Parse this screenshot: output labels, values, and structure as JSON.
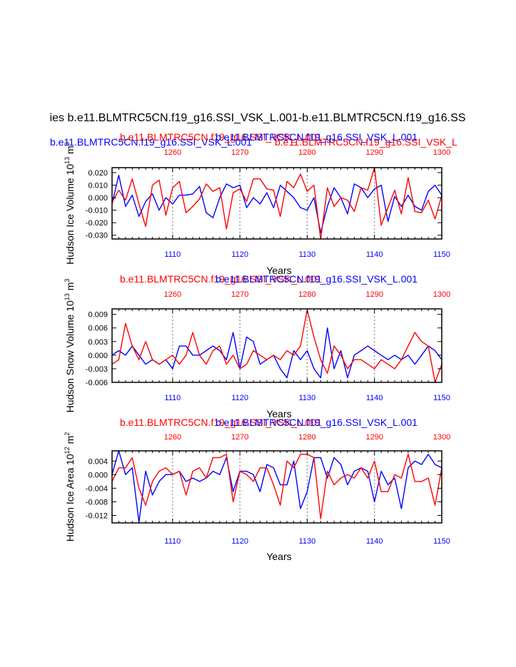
{
  "figure": {
    "main_title": "ies b.e11.BLMTRC5CN.f19_g16.SSI_VSK_L.001-b.e11.BLMTRC5CN.f19_g16.SS",
    "subtitle_blue": "b.e11.BLMTRC5CN.f19_g16.SSI_VSK_L.001",
    "subtitle_red": "b.e11.BLMTRC5CN.f19_g16.SSI_VSK_L"
  },
  "colors": {
    "series_a": "#0000ff",
    "series_b": "#ff0000",
    "axis": "#000000",
    "grid": "#888888"
  },
  "chart_data": [
    {
      "type": "line",
      "title_red": "b.e11.BLMTRC5CN.f19_g16.SSI_VSK_L.001",
      "title_blue": "b.e11.BLMTRC5CN.f19_g16.SSI_VSK_L.001",
      "ylabel": "Hudson Ice Volume 10",
      "ylabel_exp": "13",
      "ylabel_unit": "m",
      "ylabel_unit_exp": "3",
      "xlabel": "Years",
      "xlim": [
        1101,
        1150
      ],
      "ylim": [
        -0.033,
        0.024
      ],
      "top_xlim": [
        1251,
        1300
      ],
      "x_ticks": [
        "1110",
        "1120",
        "1130",
        "1140",
        "1150"
      ],
      "top_x_ticks": [
        "1260",
        "1270",
        "1280",
        "1290",
        "1300"
      ],
      "y_ticks": [
        "0.020",
        "0.010",
        "0.000",
        "-0.010",
        "-0.020",
        "-0.030"
      ],
      "y_tick_values": [
        0.02,
        0.01,
        0.0,
        -0.01,
        -0.02,
        -0.03
      ],
      "grid_x": [
        1110,
        1120,
        1130,
        1140
      ],
      "series": [
        {
          "axis": "bottom",
          "values": [
            -0.005,
            0.018,
            -0.007,
            0.002,
            -0.015,
            -0.003,
            0.003,
            -0.01,
            0.0,
            -0.005,
            0.002,
            0.002,
            0.003,
            0.009,
            -0.012,
            -0.016,
            0.0,
            0.011,
            0.008,
            0.01,
            -0.008,
            0.0,
            -0.005,
            0.004,
            -0.008,
            0.01,
            0.005,
            0.0,
            -0.008,
            -0.01,
            0.0,
            -0.028,
            -0.007,
            0.008,
            0.0,
            -0.013,
            0.011,
            0.008,
            0.0,
            0.007,
            0.01,
            -0.019,
            0.001,
            -0.007,
            0.002,
            -0.007,
            -0.01,
            0.005,
            0.01,
            0.002,
            0.014
          ]
        },
        {
          "axis": "top",
          "values": [
            -0.004,
            0.006,
            -0.002,
            0.015,
            -0.005,
            -0.023,
            0.01,
            0.014,
            -0.014,
            0.008,
            0.013,
            -0.012,
            -0.007,
            -0.001,
            0.011,
            0.005,
            0.008,
            -0.025,
            0.004,
            0.007,
            -0.003,
            0.015,
            0.015,
            0.007,
            0.006,
            -0.015,
            0.013,
            0.008,
            0.019,
            0.005,
            0.01,
            -0.033,
            0.008,
            -0.007,
            0.0,
            -0.002,
            -0.011,
            0.008,
            0.006,
            0.024,
            -0.022,
            -0.008,
            0.006,
            -0.013,
            0.016,
            -0.011,
            -0.012,
            -0.002,
            -0.017,
            0.002
          ]
        }
      ]
    },
    {
      "type": "line",
      "title_red": "b.e11.BLMTRC5CN.f19_g16.SSI_VSK_L.001",
      "title_blue": "b.e11.BLMTRC5CN.f19_g16.SSI_VSK_L.001",
      "ylabel": "Hudson Snow Volume 10",
      "ylabel_exp": "13",
      "ylabel_unit": "m",
      "ylabel_unit_exp": "3",
      "xlabel": "Years",
      "xlim": [
        1101,
        1150
      ],
      "ylim": [
        -0.006,
        0.0102
      ],
      "top_xlim": [
        1251,
        1300
      ],
      "x_ticks": [
        "1110",
        "1120",
        "1130",
        "1140",
        "1150"
      ],
      "top_x_ticks": [
        "1260",
        "1270",
        "1280",
        "1290",
        "1300"
      ],
      "y_ticks": [
        "0.009",
        "0.006",
        "0.003",
        "0.000",
        "-0.003",
        "-0.006"
      ],
      "y_tick_values": [
        0.009,
        0.006,
        0.003,
        0.0,
        -0.003,
        -0.006
      ],
      "grid_x": [
        1110,
        1120,
        1130,
        1140
      ],
      "series": [
        {
          "axis": "bottom",
          "values": [
            0.0,
            0.001,
            -0.0,
            0.002,
            -0.0,
            -0.002,
            -0.001,
            -0.002,
            -0.001,
            -0.003,
            0.002,
            0.002,
            0.0,
            0.0,
            0.001,
            0.002,
            0.001,
            -0.001,
            0.005,
            -0.003,
            0.004,
            0.003,
            -0.002,
            -0.001,
            0.0,
            -0.003,
            -0.005,
            0.001,
            -0.001,
            0.001,
            -0.003,
            -0.005,
            0.006,
            -0.003,
            0.001,
            -0.005,
            0.0,
            0.001,
            0.002,
            0.001,
            0.0,
            -0.001,
            0.0,
            -0.001,
            0.0,
            -0.002,
            0.0,
            0.002,
            0.001,
            -0.001,
            0.0
          ]
        },
        {
          "axis": "top",
          "values": [
            -0.002,
            -0.001,
            0.007,
            0.002,
            -0.001,
            0.003,
            -0.001,
            -0.002,
            -0.001,
            0.0,
            -0.002,
            0.0,
            0.005,
            0.0,
            -0.002,
            0.001,
            0.002,
            -0.002,
            0.0,
            -0.003,
            -0.002,
            0.001,
            0.0,
            -0.001,
            0.0,
            -0.001,
            0.001,
            0.0,
            0.002,
            0.01,
            0.004,
            -0.001,
            -0.004,
            0.002,
            0.0,
            -0.003,
            -0.001,
            -0.001,
            -0.002,
            -0.003,
            -0.001,
            -0.002,
            -0.003,
            -0.001,
            0.002,
            0.005,
            0.003,
            0.002,
            -0.006,
            -0.002
          ]
        }
      ]
    },
    {
      "type": "line",
      "title_red": "b.e11.BLMTRC5CN.f19_g16.SSI_VSK_L.001",
      "title_blue": "b.e11.BLMTRC5CN.f19_g16.SSI_VSK_L.001",
      "ylabel": "Hudson Ice Area 10",
      "ylabel_exp": "12",
      "ylabel_unit": "m",
      "ylabel_unit_exp": "2",
      "xlabel": "Years",
      "xlim": [
        1101,
        1150
      ],
      "ylim": [
        -0.0142,
        0.007
      ],
      "top_xlim": [
        1251,
        1300
      ],
      "x_ticks": [
        "1110",
        "1120",
        "1130",
        "1140",
        "1150"
      ],
      "top_x_ticks": [
        "1260",
        "1270",
        "1280",
        "1290",
        "1300"
      ],
      "y_ticks": [
        "0.004",
        "0.000",
        "-0.004",
        "-0.008",
        "-0.012"
      ],
      "y_tick_values": [
        0.004,
        0.0,
        -0.004,
        -0.008,
        -0.012
      ],
      "grid_x": [
        1110,
        1120,
        1130,
        1140
      ],
      "series": [
        {
          "axis": "bottom",
          "values": [
            0.0,
            0.007,
            0.0,
            0.002,
            -0.014,
            0.001,
            -0.006,
            -0.002,
            -0.0,
            -0.0,
            0.001,
            -0.002,
            -0.001,
            -0.002,
            -0.001,
            0.001,
            0.0,
            0.005,
            -0.005,
            0.001,
            0.001,
            0.0,
            -0.005,
            0.003,
            0.002,
            -0.003,
            -0.003,
            0.004,
            -0.01,
            -0.005,
            0.005,
            0.005,
            -0.001,
            0.005,
            0.003,
            -0.003,
            0.001,
            0.002,
            0.001,
            -0.008,
            0.001,
            -0.003,
            -0.001,
            -0.01,
            0.002,
            0.004,
            0.003,
            0.006,
            0.003,
            0.002,
            0.0
          ]
        },
        {
          "axis": "top",
          "values": [
            -0.002,
            0.002,
            0.002,
            0.005,
            -0.004,
            -0.009,
            -0.002,
            0.001,
            0.002,
            0.0,
            0.001,
            -0.006,
            0.001,
            0.002,
            -0.001,
            0.005,
            0.005,
            0.006,
            -0.008,
            0.001,
            0.0,
            -0.002,
            0.002,
            0.002,
            -0.003,
            -0.009,
            0.004,
            0.002,
            0.006,
            0.006,
            0.005,
            -0.013,
            0.001,
            -0.003,
            -0.001,
            0.0,
            -0.001,
            0.002,
            -0.001,
            0.004,
            -0.005,
            -0.005,
            0.0,
            -0.001,
            0.006,
            -0.002,
            -0.002,
            -0.001,
            -0.009,
            0.002
          ]
        }
      ]
    }
  ]
}
